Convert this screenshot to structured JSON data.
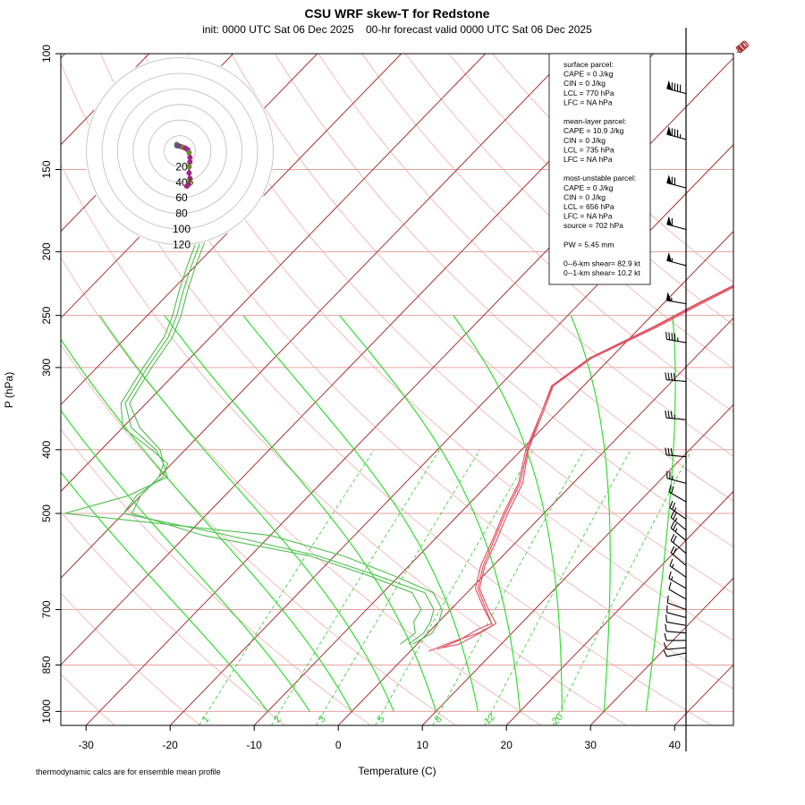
{
  "chart_data": {
    "type": "skew-t",
    "title": "CSU WRF skew-T for Redstone",
    "subtitle": "init: 0000 UTC Sat 06 Dec 2025    00-hr forecast valid 0000 UTC Sat 06 Dec 2025",
    "xlabel": "Temperature (C)",
    "ylabel": "P (hPa)",
    "x_ticks": [
      -30,
      -20,
      -10,
      0,
      10,
      20,
      30,
      40
    ],
    "x_tick_labels": [
      "-30",
      "-20",
      "-10",
      "0",
      "10",
      "20",
      "30",
      "40"
    ],
    "y_ticks": [
      100,
      150,
      200,
      250,
      300,
      400,
      500,
      700,
      850,
      1000
    ],
    "y_tick_labels": [
      "100",
      "150",
      "200",
      "250",
      "300",
      "400",
      "500",
      "700",
      "850",
      "1000"
    ],
    "xlim": [
      -33,
      47
    ],
    "ylim": [
      1050,
      100
    ],
    "isotherms_c": [
      -110,
      -100,
      -90,
      -80,
      -70,
      -60,
      -50,
      -40,
      -30,
      -20,
      -10,
      0,
      10,
      20,
      30,
      40
    ],
    "isotherm_labels": [
      {
        "text": "-10",
        "temp": -10
      },
      {
        "text": "0",
        "temp": 0
      },
      {
        "text": "10",
        "temp": 10
      },
      {
        "text": "20",
        "temp": 20
      },
      {
        "text": "30",
        "temp": 30
      },
      {
        "text": "40",
        "temp": 40
      },
      {
        "text": "50",
        "temp": 50
      }
    ],
    "dry_adiabats_c": [
      -50,
      -40,
      -30,
      -20,
      -10,
      0,
      10,
      20,
      30,
      40,
      50,
      60,
      70,
      80,
      90,
      100,
      110,
      120,
      130,
      140
    ],
    "moist_adiabats_c": [
      -10,
      -5,
      0,
      5,
      10,
      15,
      20,
      25,
      30,
      35
    ],
    "mixing_ratio_lines": [
      {
        "text": "1",
        "g_kg": 1
      },
      {
        "text": "2",
        "g_kg": 2
      },
      {
        "text": "3",
        "g_kg": 3
      },
      {
        "text": "5",
        "g_kg": 5
      },
      {
        "text": "8",
        "g_kg": 8
      },
      {
        "text": "12",
        "g_kg": 12
      },
      {
        "text": "20",
        "g_kg": 20
      }
    ],
    "temperature_profiles": [
      {
        "p": [
          805,
          780,
          750,
          735,
          700,
          650,
          600,
          550,
          500,
          450,
          400,
          350,
          320,
          290,
          260,
          240,
          215,
          195,
          180,
          160,
          145,
          125,
          115,
          110
        ],
        "t": [
          3.0,
          4.5,
          5.5,
          6.5,
          4.0,
          0.5,
          -1.5,
          -3.0,
          -4.8,
          -6.5,
          -9.5,
          -12.0,
          -13.8,
          -12.5,
          -8.5,
          -6.0,
          -2.2,
          0.5,
          1.8,
          0.5,
          -0.5,
          -3.8,
          -5.8,
          -6.8
        ]
      },
      {
        "p": [
          800,
          790,
          760,
          735,
          700,
          650,
          600,
          550,
          500,
          450,
          400,
          350,
          320,
          290,
          260,
          240,
          215,
          195,
          180,
          160,
          145,
          125,
          115,
          110
        ],
        "t": [
          3.5,
          5.0,
          6.2,
          7.0,
          4.5,
          1.0,
          -1.0,
          -2.5,
          -4.3,
          -6.0,
          -9.2,
          -11.8,
          -13.6,
          -12.2,
          -8.0,
          -5.5,
          -1.8,
          0.8,
          2.0,
          1.0,
          0.2,
          -3.0,
          -5.0,
          -6.0
        ]
      },
      {
        "p": [
          810,
          785,
          760,
          740,
          700,
          650,
          600,
          550,
          500,
          450,
          400,
          350,
          320,
          290,
          260,
          240,
          215,
          195,
          180,
          160,
          145,
          125,
          115,
          110
        ],
        "t": [
          2.2,
          3.8,
          6.0,
          6.8,
          4.2,
          0.8,
          -1.2,
          -2.8,
          -4.6,
          -6.3,
          -9.3,
          -12.0,
          -13.7,
          -12.4,
          -8.3,
          -5.8,
          -2.0,
          0.6,
          1.9,
          1.3,
          0.8,
          -2.5,
          -4.6,
          -5.6
        ]
      }
    ],
    "dewpoint_profiles": [
      {
        "p": [
          790,
          760,
          730,
          700,
          660,
          620,
          580,
          540,
          500,
          470,
          440,
          420,
          400,
          370,
          340,
          300,
          270,
          250,
          230,
          210,
          195,
          180,
          170,
          160
        ],
        "td": [
          -1.0,
          -0.5,
          -1.0,
          -2.0,
          -5.0,
          -13.0,
          -22.0,
          -35.0,
          -50.0,
          -50.5,
          -49.5,
          -50.5,
          -54.0,
          -60.0,
          -63.0,
          -64.5,
          -65.5,
          -67.0,
          -69.0,
          -71.0,
          -72.5,
          -73.5,
          -74.5,
          -76.0
        ]
      },
      {
        "p": [
          790,
          760,
          730,
          700,
          660,
          620,
          580,
          540,
          500,
          470,
          440,
          420,
          400,
          370,
          340,
          300,
          270,
          250,
          230,
          210,
          195,
          180,
          170,
          160
        ],
        "td": [
          -0.5,
          0.5,
          0.0,
          -1.0,
          -4.0,
          -11.0,
          -19.0,
          -30.0,
          -57.0,
          -51.5,
          -49.0,
          -51.0,
          -53.5,
          -59.0,
          -62.5,
          -64.0,
          -65.0,
          -66.5,
          -68.5,
          -70.5,
          -72.0,
          -73.0,
          -74.0,
          -75.5
        ]
      },
      {
        "p": [
          790,
          760,
          730,
          700,
          660,
          620,
          580,
          540,
          500,
          470,
          440,
          420,
          400,
          370,
          340,
          300,
          270,
          250,
          230,
          210,
          195,
          180,
          170,
          160
        ],
        "td": [
          -2.0,
          -1.5,
          -3.0,
          -3.5,
          -6.5,
          -14.0,
          -23.0,
          -38.0,
          -49.0,
          -50.0,
          -50.0,
          -51.0,
          -53.0,
          -58.0,
          -62.0,
          -63.5,
          -64.5,
          -66.0,
          -68.0,
          -70.0,
          -71.5,
          -72.5,
          -73.5,
          -75.0
        ]
      }
    ],
    "wind_barbs": [
      {
        "p": 115,
        "dir": 285,
        "kt": 90
      },
      {
        "p": 135,
        "dir": 285,
        "kt": 85
      },
      {
        "p": 160,
        "dir": 285,
        "kt": 70
      },
      {
        "p": 185,
        "dir": 285,
        "kt": 60
      },
      {
        "p": 210,
        "dir": 285,
        "kt": 55
      },
      {
        "p": 240,
        "dir": 280,
        "kt": 55
      },
      {
        "p": 275,
        "dir": 280,
        "kt": 45
      },
      {
        "p": 315,
        "dir": 275,
        "kt": 40
      },
      {
        "p": 360,
        "dir": 275,
        "kt": 35
      },
      {
        "p": 410,
        "dir": 275,
        "kt": 30
      },
      {
        "p": 450,
        "dir": 285,
        "kt": 25
      },
      {
        "p": 480,
        "dir": 300,
        "kt": 20
      },
      {
        "p": 510,
        "dir": 305,
        "kt": 25
      },
      {
        "p": 530,
        "dir": 310,
        "kt": 25
      },
      {
        "p": 550,
        "dir": 310,
        "kt": 25
      },
      {
        "p": 575,
        "dir": 310,
        "kt": 20
      },
      {
        "p": 600,
        "dir": 310,
        "kt": 20
      },
      {
        "p": 625,
        "dir": 305,
        "kt": 15
      },
      {
        "p": 650,
        "dir": 300,
        "kt": 15
      },
      {
        "p": 675,
        "dir": 300,
        "kt": 10
      },
      {
        "p": 700,
        "dir": 290,
        "kt": 10
      },
      {
        "p": 720,
        "dir": 285,
        "kt": 10
      },
      {
        "p": 740,
        "dir": 280,
        "kt": 10
      },
      {
        "p": 760,
        "dir": 275,
        "kt": 10
      },
      {
        "p": 780,
        "dir": 270,
        "kt": 10
      },
      {
        "p": 800,
        "dir": 265,
        "kt": 10
      },
      {
        "p": 815,
        "dir": 260,
        "kt": 10
      }
    ],
    "hodograph": {
      "rings_kt": [
        20,
        40,
        60,
        80,
        100,
        120
      ],
      "ring_labels": [
        "20",
        "40",
        "60",
        "80",
        "100",
        "120"
      ],
      "km_labels": [
        "0",
        "5"
      ],
      "points": [
        {
          "u": -4,
          "v": 8
        },
        {
          "u": -2,
          "v": 7
        },
        {
          "u": 1,
          "v": 6
        },
        {
          "u": 4,
          "v": 5
        },
        {
          "u": 7,
          "v": 4
        },
        {
          "u": 10,
          "v": 2
        },
        {
          "u": 12,
          "v": -2
        },
        {
          "u": 13,
          "v": -8
        },
        {
          "u": 13,
          "v": -14
        },
        {
          "u": 12,
          "v": -20
        },
        {
          "u": 12,
          "v": -28
        },
        {
          "u": 13,
          "v": -35
        },
        {
          "u": 12,
          "v": -40
        },
        {
          "u": 11,
          "v": -43
        },
        {
          "u": 9,
          "v": -45
        }
      ]
    },
    "stats_lines": [
      "surface parcel:",
      "CAPE = 0 J/kg",
      "CIN = 0 J/kg",
      "LCL = 770 hPa",
      "LFC = NA hPa",
      "",
      "mean-layer parcel:",
      "CAPE = 10.9 J/kg",
      "CIN = 0 J/kg",
      "LCL = 735 hPa",
      "LFC = NA hPa",
      "",
      "most-unstable parcel:",
      "CAPE = 0 J/kg",
      "CIN = 0 J/kg",
      "LCL = 656 hPa",
      "LFC = NA hPa",
      "source = 702 hPa",
      "",
      "PW =  5.45 mm",
      "",
      "0--6-km shear= 82.9 kt",
      "0--1-km shear= 10.2 kt"
    ],
    "footnote": "thermodynamic calcs are for ensemble mean profile",
    "colors": {
      "isotherm": "#a83232",
      "isobar": "#e6a0a0",
      "dry_adiabat": "#efa2a2",
      "moist_adiabat": "#22dd22",
      "mixing_ratio": "#33cc33",
      "temperature": "#e05060",
      "dewpoint": "#4fbf4f",
      "hodograph_ring": "#bbbbbb",
      "hodograph_trace": "#a0288c",
      "barb": "#000000"
    }
  }
}
